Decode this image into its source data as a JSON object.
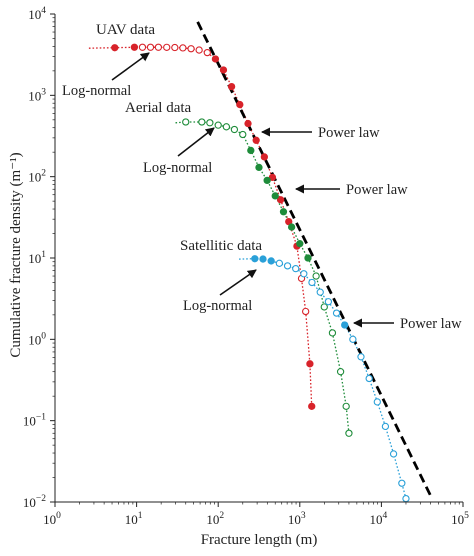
{
  "chart_data": {
    "type": "scatter",
    "xlabel": "Fracture length (m)",
    "ylabel": "Cumulative fracture density (m⁻¹)",
    "x_scale": "log",
    "y_scale": "log",
    "xlim": [
      1,
      100000
    ],
    "ylim": [
      0.01,
      10000
    ],
    "x_ticks": [
      {
        "value": 1,
        "base": "10",
        "exp": "0"
      },
      {
        "value": 10,
        "base": "10",
        "exp": "1"
      },
      {
        "value": 100,
        "base": "10",
        "exp": "2"
      },
      {
        "value": 1000,
        "base": "10",
        "exp": "3"
      },
      {
        "value": 10000,
        "base": "10",
        "exp": "4"
      },
      {
        "value": 100000,
        "base": "10",
        "exp": "5"
      }
    ],
    "y_ticks": [
      {
        "value": 0.01,
        "base": "10",
        "exp": "−2"
      },
      {
        "value": 0.1,
        "base": "10",
        "exp": "−1"
      },
      {
        "value": 1,
        "base": "10",
        "exp": "0"
      },
      {
        "value": 10,
        "base": "10",
        "exp": "1"
      },
      {
        "value": 100,
        "base": "10",
        "exp": "2"
      },
      {
        "value": 1000,
        "base": "10",
        "exp": "3"
      },
      {
        "value": 10000,
        "base": "10",
        "exp": "4"
      }
    ],
    "series": [
      {
        "name": "UAV data",
        "color": "#d8232a",
        "fit_start": [
          2.6,
          3800
        ],
        "points": [
          {
            "x": 5.4,
            "y": 3850,
            "filled": true
          },
          {
            "x": 9.4,
            "y": 3900,
            "filled": true
          },
          {
            "x": 11.8,
            "y": 3900,
            "filled": false
          },
          {
            "x": 14.8,
            "y": 3900,
            "filled": false
          },
          {
            "x": 18.5,
            "y": 3900,
            "filled": false
          },
          {
            "x": 23.4,
            "y": 3890,
            "filled": false
          },
          {
            "x": 29.4,
            "y": 3870,
            "filled": false
          },
          {
            "x": 36.9,
            "y": 3830,
            "filled": false
          },
          {
            "x": 46.5,
            "y": 3740,
            "filled": false
          },
          {
            "x": 58.4,
            "y": 3600,
            "filled": false
          },
          {
            "x": 73.5,
            "y": 3350,
            "filled": false
          },
          {
            "x": 92.5,
            "y": 2800,
            "filled": true
          },
          {
            "x": 116,
            "y": 2050,
            "filled": true
          },
          {
            "x": 146,
            "y": 1280,
            "filled": true
          },
          {
            "x": 184,
            "y": 770,
            "filled": true
          },
          {
            "x": 232,
            "y": 450,
            "filled": true
          },
          {
            "x": 292,
            "y": 280,
            "filled": true
          },
          {
            "x": 368,
            "y": 175,
            "filled": true
          },
          {
            "x": 462,
            "y": 98,
            "filled": true
          },
          {
            "x": 582,
            "y": 52,
            "filled": true
          },
          {
            "x": 732,
            "y": 28,
            "filled": true
          },
          {
            "x": 922,
            "y": 14,
            "filled": true
          },
          {
            "x": 1050,
            "y": 5.6,
            "filled": false
          },
          {
            "x": 1180,
            "y": 2.2,
            "filled": false
          },
          {
            "x": 1330,
            "y": 0.5,
            "filled": true
          },
          {
            "x": 1400,
            "y": 0.15,
            "filled": true
          }
        ]
      },
      {
        "name": "Aerial data",
        "color": "#1e8c3a",
        "fit_start": [
          30,
          460
        ],
        "points": [
          {
            "x": 40,
            "y": 470,
            "filled": false
          },
          {
            "x": 63,
            "y": 470,
            "filled": false
          },
          {
            "x": 79,
            "y": 460,
            "filled": false
          },
          {
            "x": 100,
            "y": 430,
            "filled": false
          },
          {
            "x": 126,
            "y": 410,
            "filled": false
          },
          {
            "x": 158,
            "y": 380,
            "filled": false
          },
          {
            "x": 200,
            "y": 330,
            "filled": false
          },
          {
            "x": 251,
            "y": 210,
            "filled": true
          },
          {
            "x": 316,
            "y": 130,
            "filled": true
          },
          {
            "x": 398,
            "y": 90,
            "filled": true
          },
          {
            "x": 500,
            "y": 58,
            "filled": true
          },
          {
            "x": 631,
            "y": 37,
            "filled": true
          },
          {
            "x": 794,
            "y": 24,
            "filled": true
          },
          {
            "x": 1000,
            "y": 15,
            "filled": true
          },
          {
            "x": 1260,
            "y": 10,
            "filled": true
          },
          {
            "x": 1585,
            "y": 6,
            "filled": false
          },
          {
            "x": 1995,
            "y": 2.5,
            "filled": false
          },
          {
            "x": 2512,
            "y": 1.2,
            "filled": false
          },
          {
            "x": 3162,
            "y": 0.4,
            "filled": false
          },
          {
            "x": 3700,
            "y": 0.15,
            "filled": false
          },
          {
            "x": 4000,
            "y": 0.07,
            "filled": false
          }
        ]
      },
      {
        "name": "Satellitic data",
        "color": "#2aa0d8",
        "fit_start": [
          180,
          9.7
        ],
        "points": [
          {
            "x": 281,
            "y": 9.8,
            "filled": true
          },
          {
            "x": 354,
            "y": 9.7,
            "filled": true
          },
          {
            "x": 446,
            "y": 9.2,
            "filled": true
          },
          {
            "x": 562,
            "y": 8.6,
            "filled": false
          },
          {
            "x": 708,
            "y": 8.0,
            "filled": false
          },
          {
            "x": 891,
            "y": 7.4,
            "filled": false
          },
          {
            "x": 1120,
            "y": 6.4,
            "filled": false
          },
          {
            "x": 1410,
            "y": 5.0,
            "filled": false
          },
          {
            "x": 1780,
            "y": 3.8,
            "filled": false
          },
          {
            "x": 2240,
            "y": 2.9,
            "filled": false
          },
          {
            "x": 2820,
            "y": 2.1,
            "filled": false
          },
          {
            "x": 3550,
            "y": 1.5,
            "filled": true
          },
          {
            "x": 4470,
            "y": 1.0,
            "filled": false
          },
          {
            "x": 5620,
            "y": 0.61,
            "filled": false
          },
          {
            "x": 7080,
            "y": 0.33,
            "filled": false
          },
          {
            "x": 8910,
            "y": 0.17,
            "filled": false
          },
          {
            "x": 11200,
            "y": 0.085,
            "filled": false
          },
          {
            "x": 14100,
            "y": 0.039,
            "filled": false
          },
          {
            "x": 17800,
            "y": 0.017,
            "filled": false
          },
          {
            "x": 20000,
            "y": 0.011,
            "filled": false
          }
        ]
      }
    ],
    "power_law_fit": {
      "x": [
        56,
        40000
      ],
      "y": [
        8000,
        0.012
      ],
      "color": "#000000"
    },
    "annotations": [
      {
        "text": "UAV data",
        "color": "#d8232a"
      },
      {
        "text": "Aerial data",
        "color": "#1e8c3a"
      },
      {
        "text": "Satellitic data",
        "color": "#2aa0d8"
      },
      {
        "text": "Log-normal",
        "color": "#222222"
      },
      {
        "text": "Log-normal",
        "color": "#222222"
      },
      {
        "text": "Log-normal",
        "color": "#222222"
      },
      {
        "text": "Power law",
        "color": "#222222"
      },
      {
        "text": "Power law",
        "color": "#222222"
      },
      {
        "text": "Power law",
        "color": "#222222"
      }
    ]
  }
}
